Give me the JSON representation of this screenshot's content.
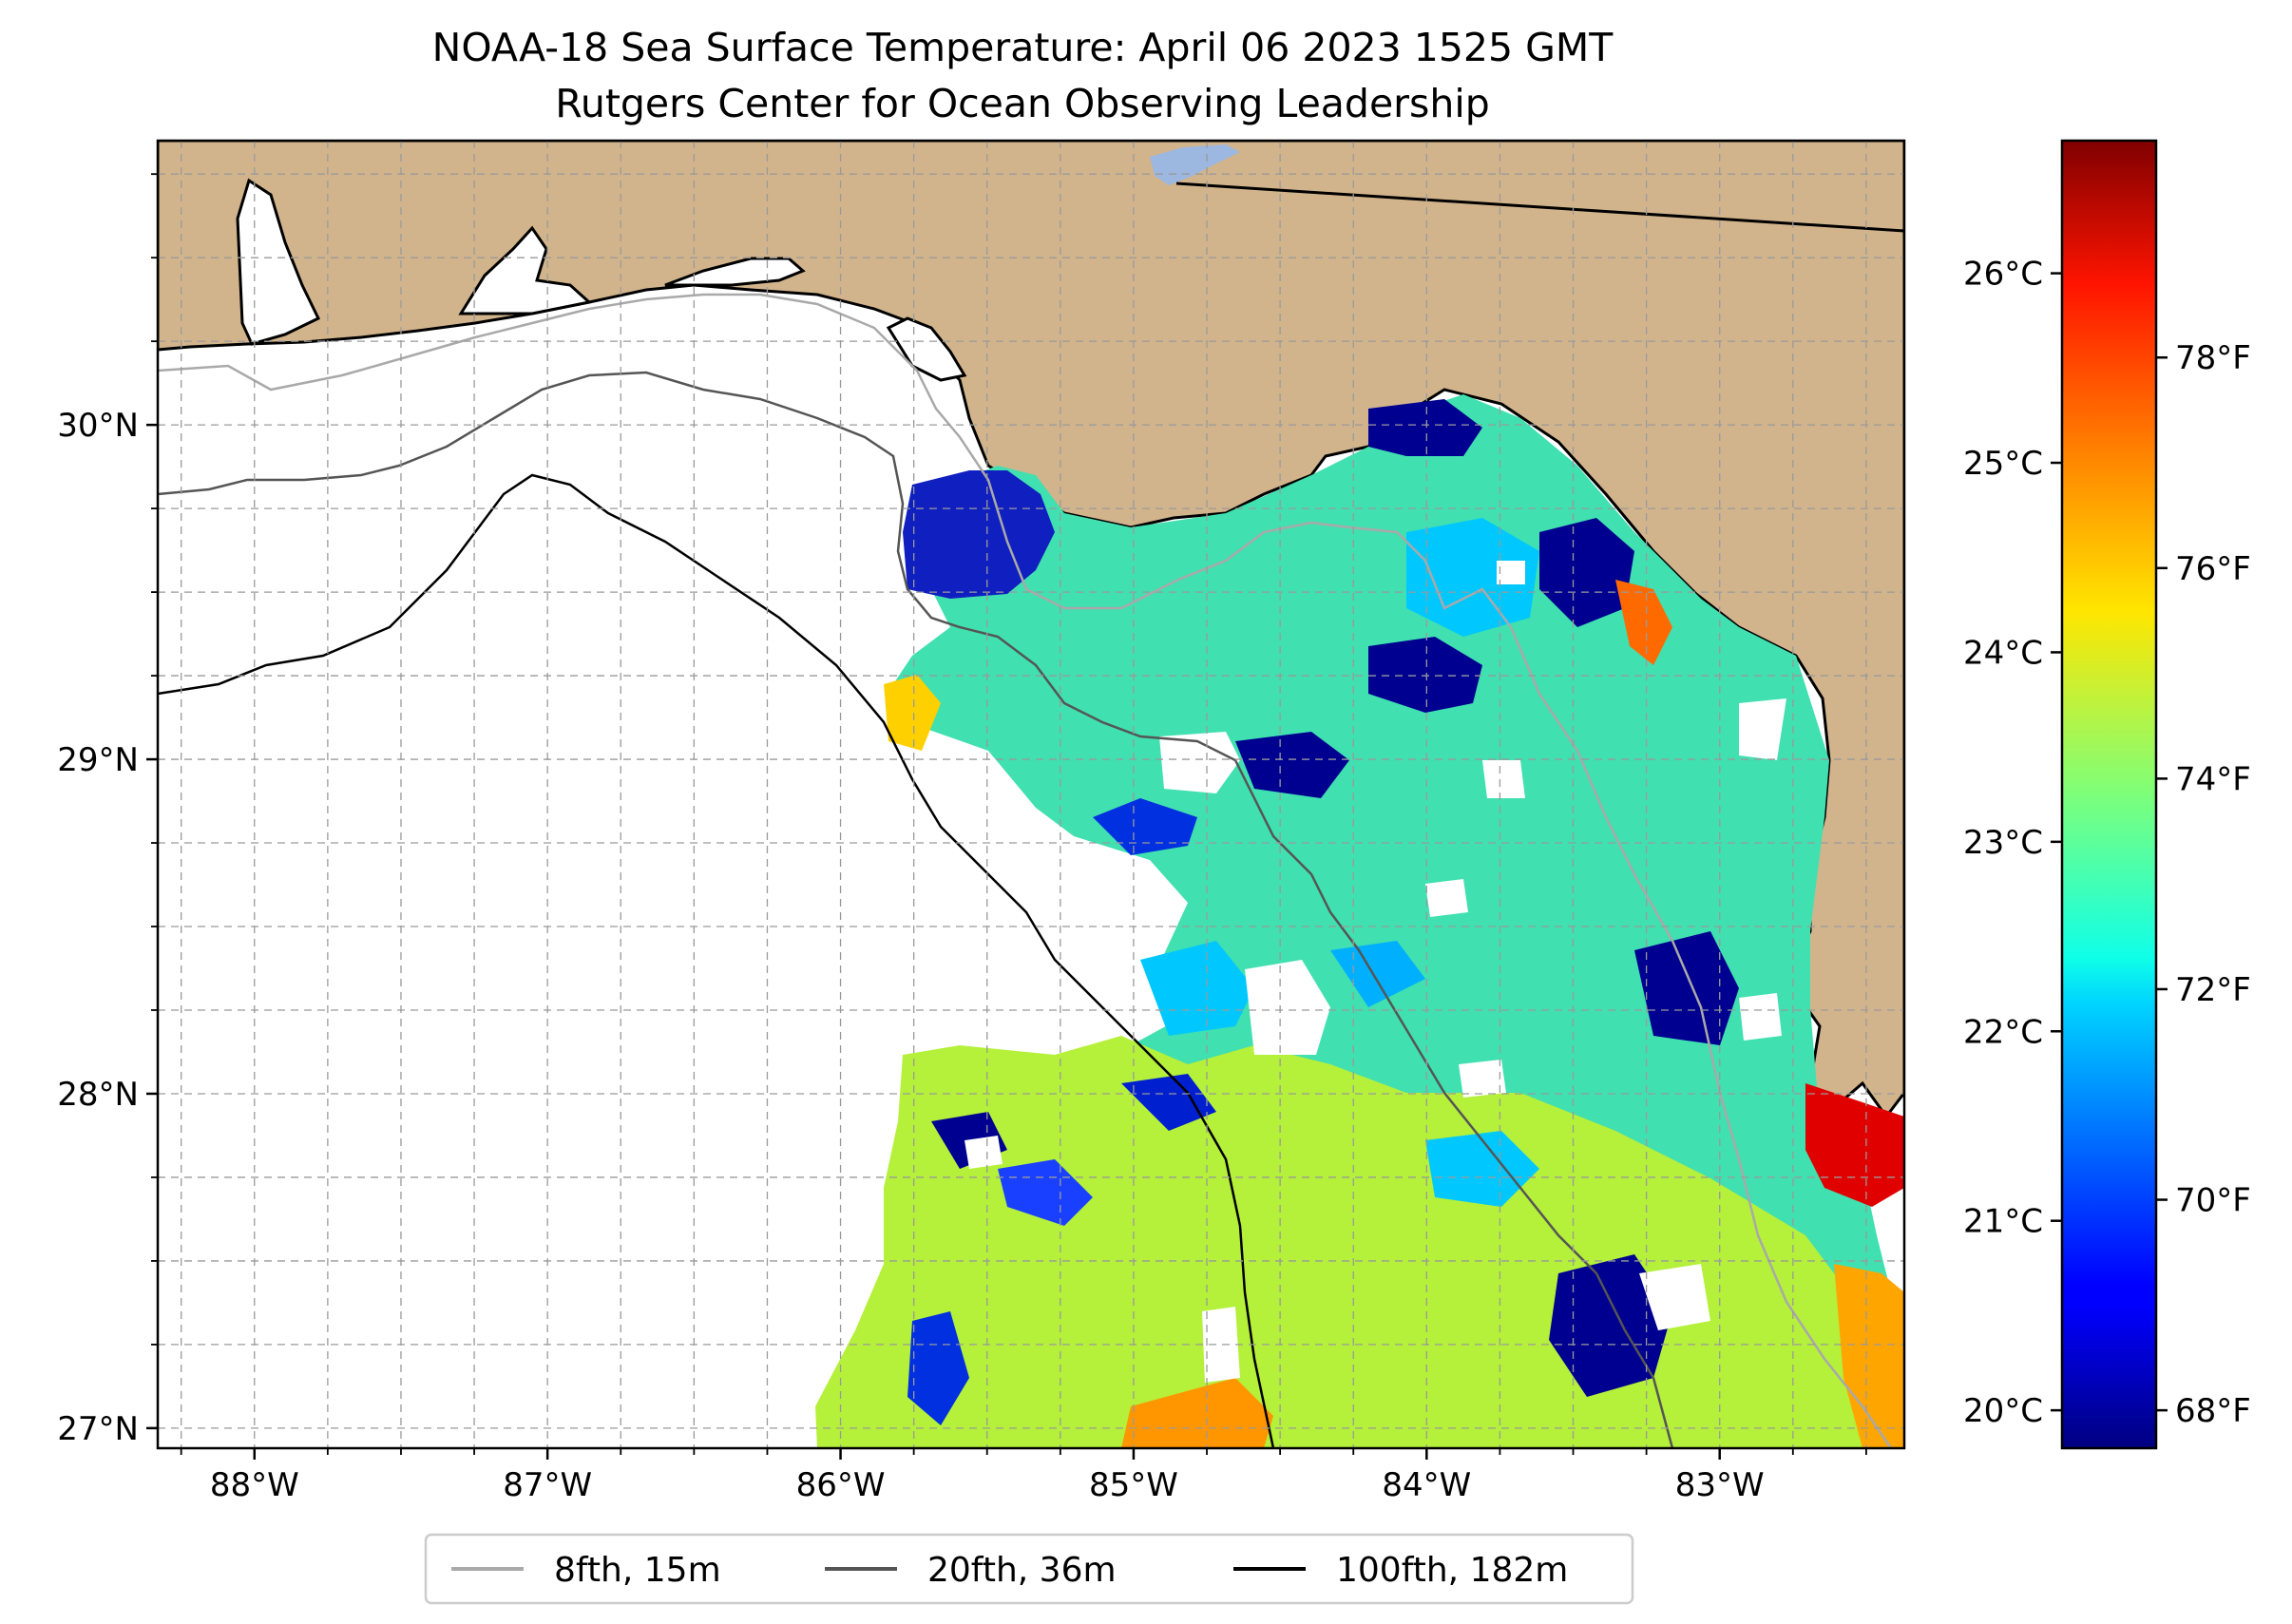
{
  "title": {
    "line1": "NOAA-18 Sea Surface Temperature: April 06 2023 1525 GMT",
    "line2": "Rutgers Center for Ocean Observing Leadership"
  },
  "map": {
    "lon_range": [
      -88.33,
      -82.37
    ],
    "lat_range": [
      26.94,
      30.85
    ],
    "lon_ticks": [
      {
        "value": -88,
        "label": "88°W"
      },
      {
        "value": -87,
        "label": "87°W"
      },
      {
        "value": -86,
        "label": "86°W"
      },
      {
        "value": -85,
        "label": "85°W"
      },
      {
        "value": -84,
        "label": "84°W"
      },
      {
        "value": -83,
        "label": "83°W"
      }
    ],
    "lat_ticks": [
      {
        "value": 27,
        "label": "27°N"
      },
      {
        "value": 28,
        "label": "28°N"
      },
      {
        "value": 29,
        "label": "29°N"
      },
      {
        "value": 30,
        "label": "30°N"
      }
    ],
    "land_color": "#D2B48C",
    "no_data_color": "#FFFFFF"
  },
  "colorbar": {
    "colormap": "jet",
    "celsius_range": [
      19.8,
      26.7
    ],
    "celsius_ticks": [
      {
        "value": 20,
        "label": "20°C"
      },
      {
        "value": 21,
        "label": "21°C"
      },
      {
        "value": 22,
        "label": "22°C"
      },
      {
        "value": 23,
        "label": "23°C"
      },
      {
        "value": 24,
        "label": "24°C"
      },
      {
        "value": 25,
        "label": "25°C"
      },
      {
        "value": 26,
        "label": "26°C"
      }
    ],
    "fahrenheit_ticks": [
      {
        "value": 68,
        "label": "68°F"
      },
      {
        "value": 70,
        "label": "70°F"
      },
      {
        "value": 72,
        "label": "72°F"
      },
      {
        "value": 74,
        "label": "74°F"
      },
      {
        "value": 76,
        "label": "76°F"
      },
      {
        "value": 78,
        "label": "78°F"
      }
    ]
  },
  "legend": {
    "items": [
      {
        "label": "8fth, 15m",
        "color": "#A9A9A9"
      },
      {
        "label": "20fth, 36m",
        "color": "#555555"
      },
      {
        "label": "100fth, 182m",
        "color": "#000000"
      }
    ]
  }
}
